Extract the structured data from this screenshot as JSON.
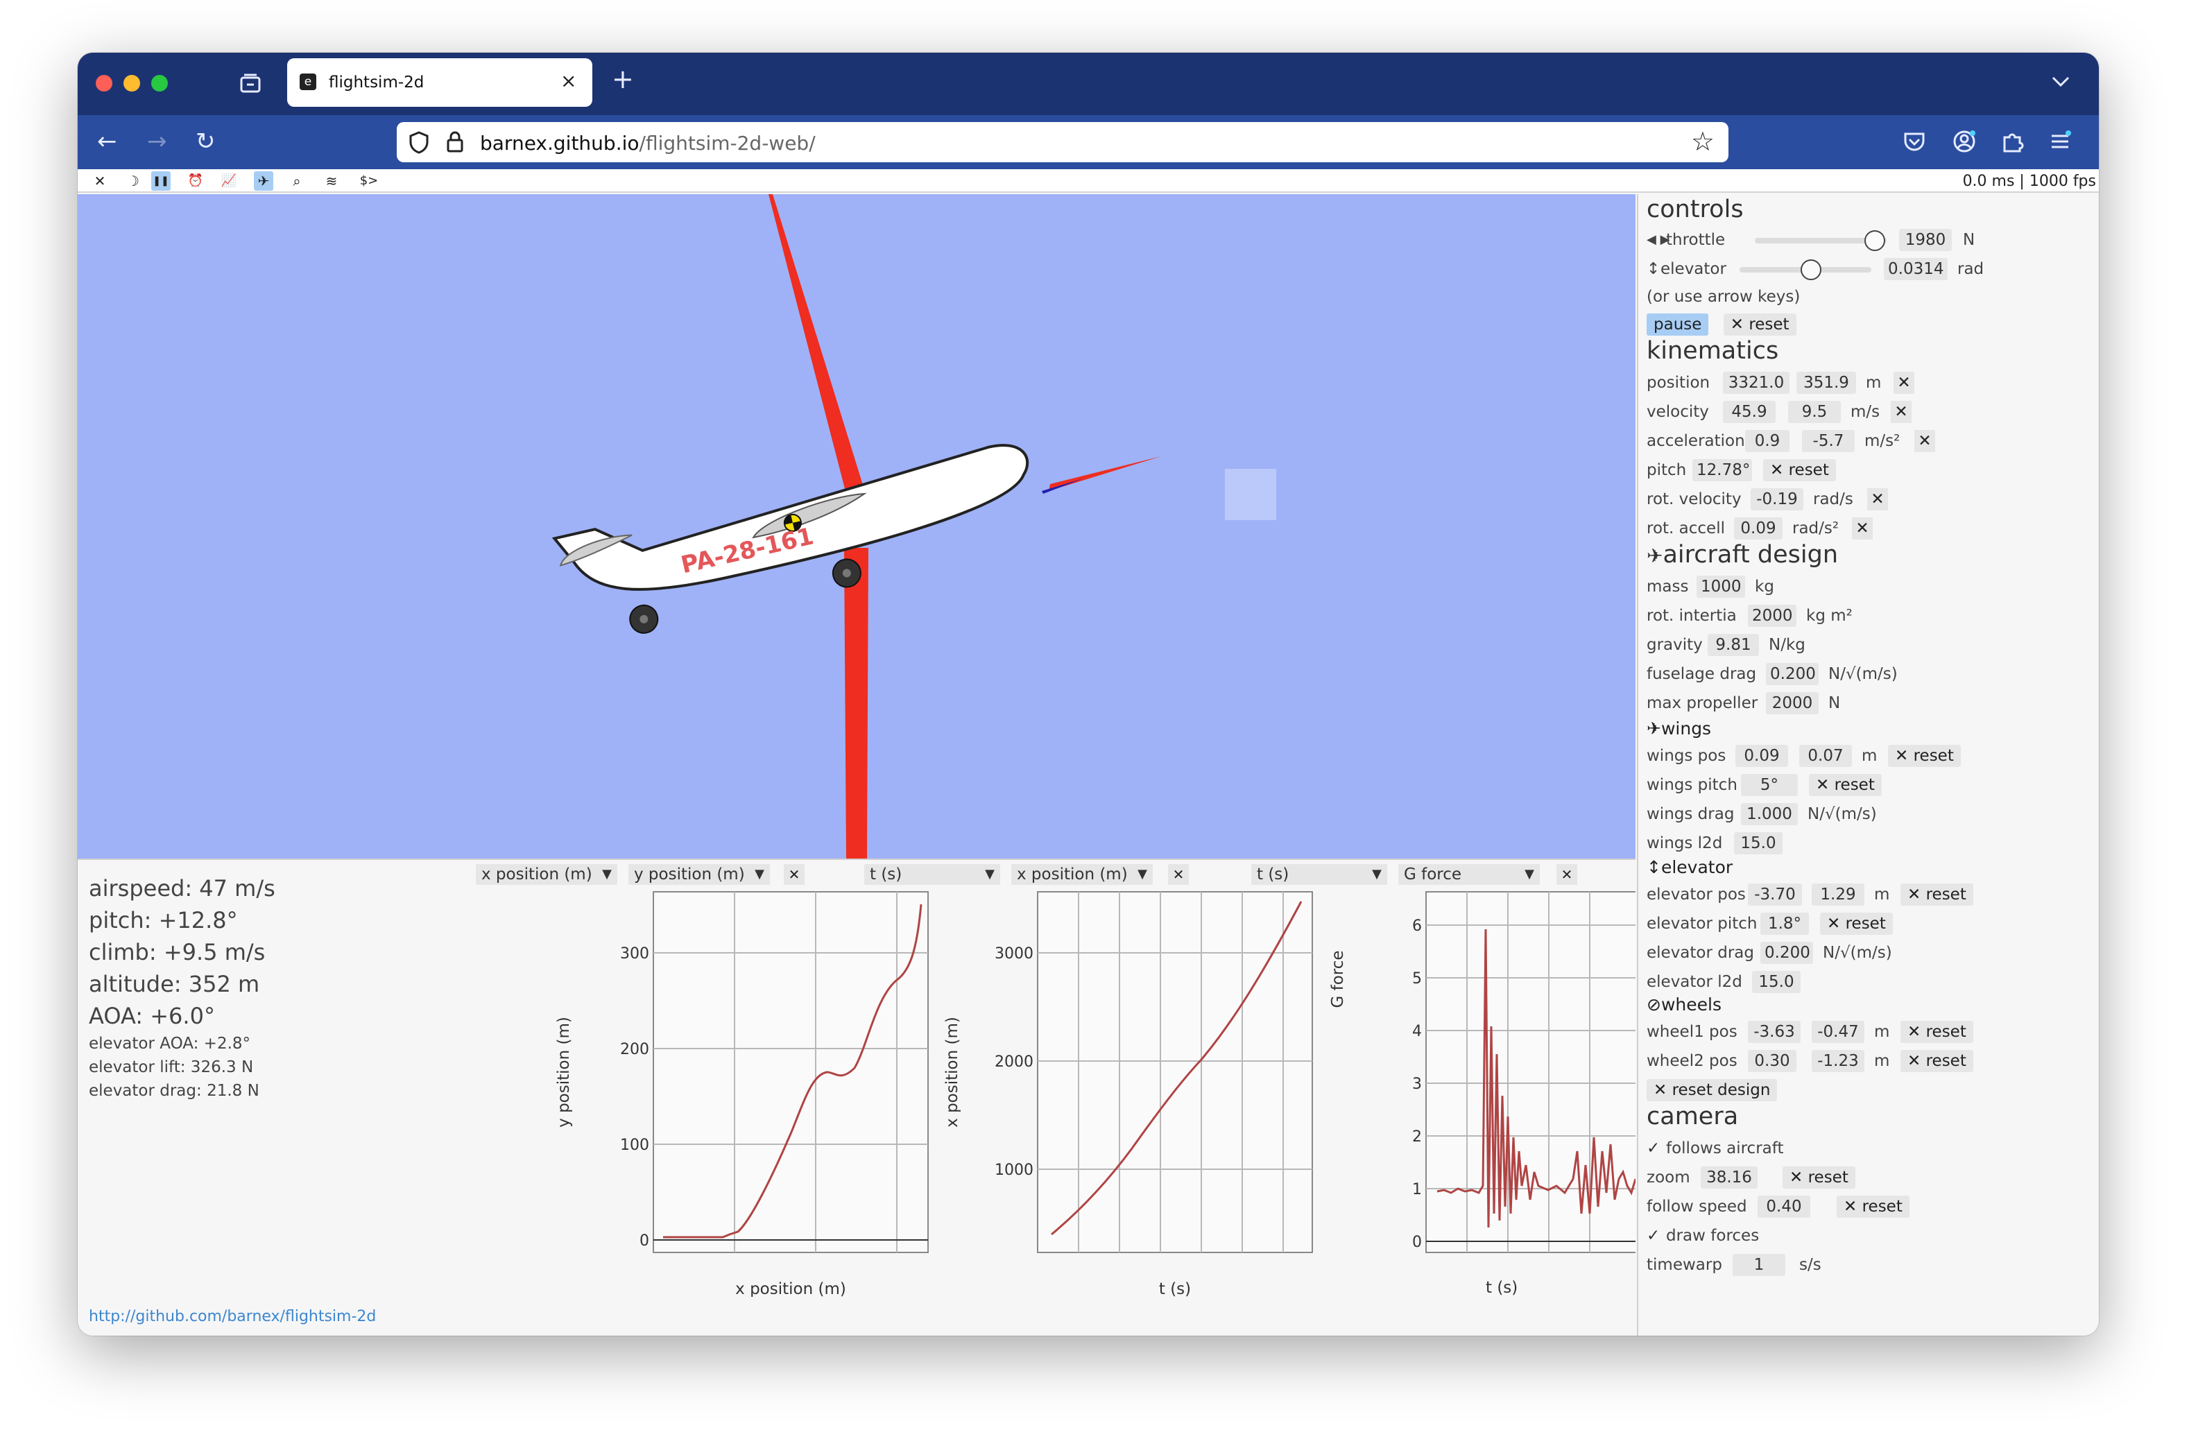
{
  "browser": {
    "tab_title": "flightsim-2d",
    "tab_favicon": "e",
    "url_host": "barnex.github.io",
    "url_path": "/flightsim-2d-web/",
    "icons": [
      "back-icon",
      "forward-icon",
      "reload-icon",
      "shield-icon",
      "lock-icon",
      "star-icon",
      "pocket-icon",
      "account-icon",
      "extensions-icon",
      "menu-icon",
      "tab-overview-icon",
      "chevron-down-icon",
      "new-tab-icon"
    ]
  },
  "toolbar": {
    "buttons": [
      {
        "name": "close",
        "glyph": "✕"
      },
      {
        "name": "night",
        "glyph": "☽"
      },
      {
        "name": "pause",
        "glyph": "❚❚",
        "active": true
      },
      {
        "name": "clock",
        "glyph": "⏰"
      },
      {
        "name": "chart",
        "glyph": "📈"
      },
      {
        "name": "aircraft",
        "glyph": "✈",
        "active": true
      },
      {
        "name": "zoom",
        "glyph": "⌕"
      },
      {
        "name": "layers",
        "glyph": "≋"
      },
      {
        "name": "console",
        "glyph": "$>"
      }
    ],
    "perf": "0.0 ms | 1000 fps"
  },
  "aircraft": {
    "label": "PA-28-161"
  },
  "hud": {
    "airspeed": "airspeed: 47 m/s",
    "pitch": "pitch: +12.8°",
    "climb": "climb: +9.5 m/s",
    "altitude": "altitude: 352 m",
    "aoa": "AOA: +6.0°",
    "elev_aoa": "elevator AOA: +2.8°",
    "elev_lift": "elevator lift: 326.3 N",
    "elev_drag": "elevator drag: 21.8 N"
  },
  "plots": [
    {
      "x_select": "x position (m)",
      "y_select": "y position (m)",
      "xlabel": "x position (m)",
      "ylabel": "y position (m)",
      "yticks": [
        "0",
        "100",
        "200",
        "300"
      ]
    },
    {
      "x_select": "t (s)",
      "y_select": "x position (m)",
      "xlabel": "t (s)",
      "ylabel": "x position (m)",
      "yticks": [
        "1000",
        "2000",
        "3000"
      ]
    },
    {
      "x_select": "t (s)",
      "y_select": "G force",
      "xlabel": "t (s)",
      "ylabel": "G force",
      "yticks": [
        "0",
        "1",
        "2",
        "3",
        "4",
        "5",
        "6"
      ]
    }
  ],
  "link": "http://github.com/barnex/flightsim-2d",
  "panel": {
    "controls": {
      "title": "controls",
      "throttle_icon": "◀ ▶",
      "throttle_label": "throttle",
      "throttle_value": "1980",
      "throttle_unit": "N",
      "throttle_fraction": 0.99,
      "elevator_icon": "↕",
      "elevator_label": "elevator",
      "elevator_value": "0.0314",
      "elevator_unit": "rad",
      "elevator_fraction": 0.55,
      "hint": "(or use arrow keys)",
      "pause": "pause",
      "reset": "reset"
    },
    "kinematics": {
      "title": "kinematics",
      "position": {
        "label": "position",
        "a": "3321.0",
        "b": "351.9",
        "unit": "m"
      },
      "velocity": {
        "label": "velocity",
        "a": "45.9",
        "b": "9.5",
        "unit": "m/s"
      },
      "acceleration": {
        "label": "acceleration",
        "a": "0.9",
        "b": "-5.7",
        "unit": "m/s²"
      },
      "pitch": {
        "label": "pitch",
        "v": "12.78°",
        "reset": "reset"
      },
      "rot_velocity": {
        "label": "rot. velocity",
        "v": "-0.19",
        "unit": "rad/s"
      },
      "rot_accel": {
        "label": "rot. accell",
        "v": "0.09",
        "unit": "rad/s²"
      }
    },
    "design": {
      "title": "aircraft design",
      "mass": {
        "label": "mass",
        "v": "1000",
        "unit": "kg"
      },
      "inertia": {
        "label": "rot. intertia",
        "v": "2000",
        "unit": "kg m²"
      },
      "gravity": {
        "label": "gravity",
        "v": "9.81",
        "unit": "N/kg"
      },
      "fdrag": {
        "label": "fuselage drag",
        "v": "0.200",
        "unit": "N/√(m/s)"
      },
      "prop": {
        "label": "max propeller",
        "v": "2000",
        "unit": "N"
      },
      "wings_title": "wings",
      "wings_pos": {
        "label": "wings pos",
        "a": "0.09",
        "b": "0.07",
        "unit": "m",
        "reset": "reset"
      },
      "wings_pitch": {
        "label": "wings pitch",
        "v": "5°",
        "reset": "reset"
      },
      "wings_drag": {
        "label": "wings drag",
        "v": "1.000",
        "unit": "N/√(m/s)"
      },
      "wings_l2d": {
        "label": "wings l2d",
        "v": "15.0"
      },
      "elev_title": "elevator",
      "elev_pos": {
        "label": "elevator pos",
        "a": "-3.70",
        "b": "1.29",
        "unit": "m",
        "reset": "reset"
      },
      "elev_pitch": {
        "label": "elevator pitch",
        "v": "1.8°",
        "reset": "reset"
      },
      "elev_drag": {
        "label": "elevator drag",
        "v": "0.200",
        "unit": "N/√(m/s)"
      },
      "elev_l2d": {
        "label": "elevator l2d",
        "v": "15.0"
      },
      "wheels_title": "wheels",
      "wheel1": {
        "label": "wheel1 pos",
        "a": "-3.63",
        "b": "-0.47",
        "unit": "m",
        "reset": "reset"
      },
      "wheel2": {
        "label": "wheel2 pos",
        "a": "0.30",
        "b": "-1.23",
        "unit": "m",
        "reset": "reset"
      },
      "reset_design": "reset design"
    },
    "camera": {
      "title": "camera",
      "follows": "follows aircraft",
      "zoom": {
        "label": "zoom",
        "v": "38.16",
        "reset": "reset"
      },
      "follow_speed": {
        "label": "follow speed",
        "v": "0.40",
        "reset": "reset"
      },
      "draw_forces": "draw forces",
      "timewarp": {
        "label": "timewarp",
        "v": "1",
        "unit": "s/s"
      }
    }
  },
  "colors": {
    "sky": "#9fb2f7",
    "force": "#ef2d20",
    "curve": "#b04444",
    "accent": "#a7cdf4",
    "chrome": "#1c3372",
    "nav": "#2a4d9f",
    "link": "#3d87d0"
  }
}
